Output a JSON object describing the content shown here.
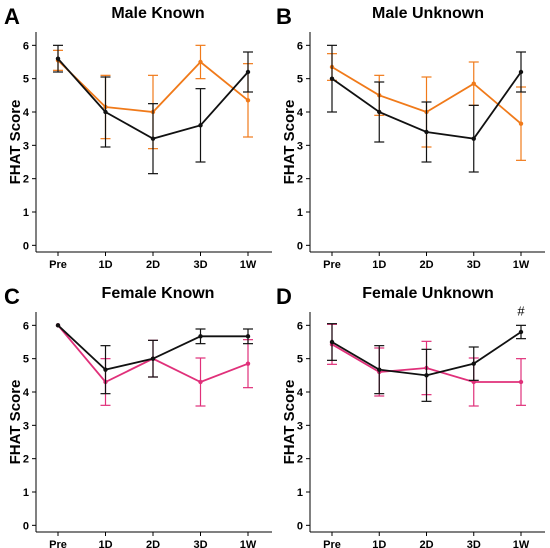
{
  "colors": {
    "black": "#111111",
    "orange": "#f07a1a",
    "pink": "#e0307a"
  },
  "chart_data": [
    {
      "type": "line",
      "panel_letter": "A",
      "title": "Male Known",
      "ylabel": "FHAT Score",
      "categories": [
        "Pre",
        "1D",
        "2D",
        "3D",
        "1W"
      ],
      "yticks": [
        "0",
        "1",
        "2",
        "3",
        "4",
        "5",
        "6"
      ],
      "ylim": [
        -0.2,
        6.4
      ],
      "grid": false,
      "series": [
        {
          "color": "black",
          "values": [
            5.6,
            4.0,
            3.2,
            3.6,
            5.2
          ],
          "errors": [
            0.4,
            1.05,
            1.05,
            1.1,
            0.6
          ]
        },
        {
          "color": "orange",
          "values": [
            5.55,
            4.15,
            4.0,
            5.5,
            4.35
          ],
          "errors": [
            0.3,
            0.95,
            1.1,
            0.5,
            1.1
          ]
        }
      ],
      "annotations": []
    },
    {
      "type": "line",
      "panel_letter": "B",
      "title": "Male Unknown",
      "ylabel": "FHAT Score",
      "categories": [
        "Pre",
        "1D",
        "2D",
        "3D",
        "1W"
      ],
      "yticks": [
        "0",
        "1",
        "2",
        "3",
        "4",
        "5",
        "6"
      ],
      "ylim": [
        -0.2,
        6.4
      ],
      "grid": false,
      "series": [
        {
          "color": "black",
          "values": [
            5.0,
            4.0,
            3.4,
            3.2,
            5.2
          ],
          "errors": [
            1.0,
            0.9,
            0.9,
            1.0,
            0.6
          ]
        },
        {
          "color": "orange",
          "values": [
            5.35,
            4.5,
            4.0,
            4.85,
            3.65
          ],
          "errors": [
            0.4,
            0.6,
            1.05,
            0.65,
            1.1
          ]
        }
      ],
      "annotations": []
    },
    {
      "type": "line",
      "panel_letter": "C",
      "title": "Female Known",
      "ylabel": "FHAT Score",
      "categories": [
        "Pre",
        "1D",
        "2D",
        "3D",
        "1W"
      ],
      "yticks": [
        "0",
        "1",
        "2",
        "3",
        "4",
        "5",
        "6"
      ],
      "ylim": [
        -0.2,
        6.4
      ],
      "grid": false,
      "series": [
        {
          "color": "black",
          "values": [
            6.0,
            4.67,
            5.0,
            5.67,
            5.67
          ],
          "errors": [
            0.0,
            0.72,
            0.55,
            0.22,
            0.22
          ]
        },
        {
          "color": "pink",
          "values": [
            6.0,
            4.3,
            5.0,
            4.3,
            4.85
          ],
          "errors": [
            0.0,
            0.7,
            0.55,
            0.72,
            0.72
          ]
        }
      ],
      "annotations": []
    },
    {
      "type": "line",
      "panel_letter": "D",
      "title": "Female Unknown",
      "ylabel": "FHAT Score",
      "categories": [
        "Pre",
        "1D",
        "2D",
        "3D",
        "1W"
      ],
      "yticks": [
        "0",
        "1",
        "2",
        "3",
        "4",
        "5",
        "6"
      ],
      "ylim": [
        -0.2,
        6.4
      ],
      "grid": false,
      "series": [
        {
          "color": "black",
          "values": [
            5.5,
            4.67,
            4.5,
            4.85,
            5.8
          ],
          "errors": [
            0.55,
            0.72,
            0.78,
            0.5,
            0.2
          ]
        },
        {
          "color": "pink",
          "values": [
            5.43,
            4.6,
            4.72,
            4.3,
            4.3
          ],
          "errors": [
            0.6,
            0.72,
            0.8,
            0.72,
            0.7
          ]
        }
      ],
      "annotations": [
        {
          "text": "#",
          "category": "1W",
          "y": 6.3
        }
      ]
    }
  ]
}
